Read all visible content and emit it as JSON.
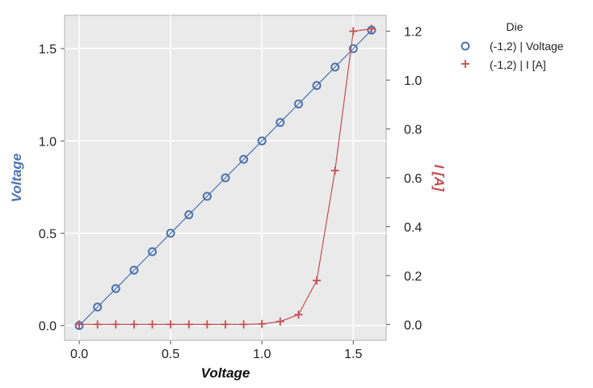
{
  "chart_data": {
    "type": "line",
    "x": [
      0.0,
      0.1,
      0.2,
      0.3,
      0.4,
      0.5,
      0.6,
      0.7,
      0.8,
      0.9,
      1.0,
      1.1,
      1.2,
      1.3,
      1.4,
      1.5,
      1.6
    ],
    "xlabel": "Voltage",
    "ylabel": "Voltage",
    "y2label": "I [A]",
    "xlim": [
      -0.08,
      1.68
    ],
    "ylim": [
      -0.08,
      1.68
    ],
    "y2lim": [
      -0.065,
      1.265
    ],
    "xticks": [
      "0.0",
      "0.5",
      "1.0",
      "1.5"
    ],
    "yticks": [
      "0.0",
      "0.5",
      "1.0",
      "1.5"
    ],
    "y2ticks": [
      "0.0",
      "0.2",
      "0.4",
      "0.6",
      "0.8",
      "1.0",
      "1.2"
    ],
    "grid": true,
    "legend": {
      "title": "Die",
      "placement": "outside-right",
      "entries": [
        "(-1,2) | Voltage",
        "(-1,2) | I [A]"
      ]
    },
    "series": [
      {
        "name": "(-1,2) | Voltage",
        "axis": "left",
        "marker": "circle",
        "color": "#4c72b0",
        "values": [
          0.0,
          0.1,
          0.2,
          0.3,
          0.4,
          0.5,
          0.6,
          0.7,
          0.8,
          0.9,
          1.0,
          1.1,
          1.2,
          1.3,
          1.4,
          1.5,
          1.6
        ]
      },
      {
        "name": "(-1,2) | I [A]",
        "axis": "right",
        "marker": "plus",
        "color": "#c44e52",
        "values": [
          0.0,
          0.0,
          0.0,
          0.0,
          0.0,
          0.0,
          0.0,
          0.0,
          0.0,
          0.0,
          0.002,
          0.012,
          0.04,
          0.18,
          0.63,
          1.2,
          1.21
        ]
      }
    ]
  }
}
